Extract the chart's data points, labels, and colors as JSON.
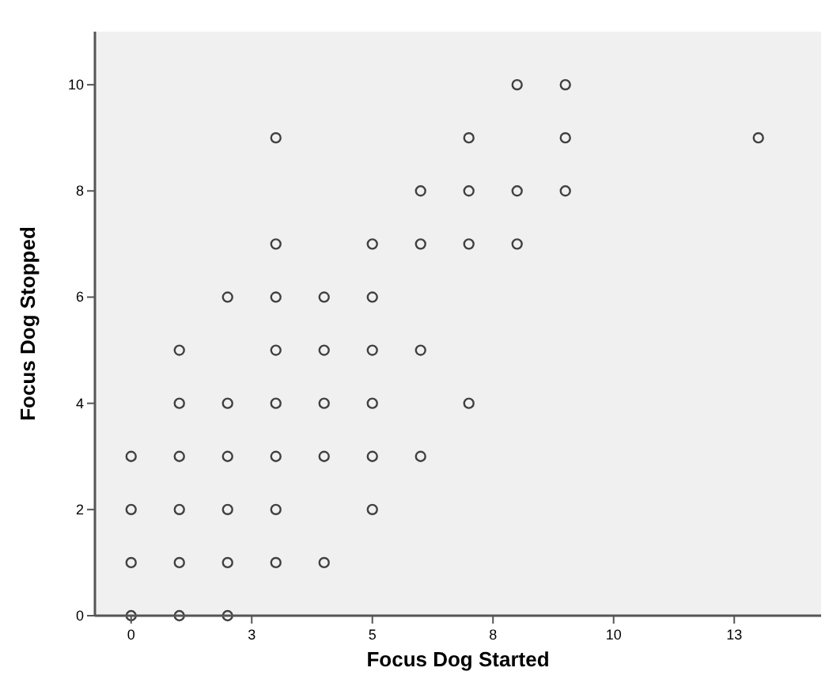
{
  "chart_data": {
    "type": "scatter",
    "xlabel": "Focus Dog Started",
    "ylabel": "Focus Dog Stopped",
    "x": [
      8,
      9,
      3,
      7,
      9,
      13,
      6,
      7,
      8,
      9,
      3,
      5,
      6,
      7,
      8,
      2,
      3,
      4,
      5,
      1,
      3,
      4,
      5,
      6,
      1,
      2,
      3,
      4,
      5,
      7,
      0,
      1,
      2,
      3,
      4,
      5,
      6,
      0,
      1,
      2,
      3,
      5,
      0,
      1,
      2,
      3,
      4,
      0,
      1,
      2
    ],
    "series": [
      {
        "color": "#404040",
        "values": [
          10,
          10,
          9,
          9,
          9,
          9,
          8,
          8,
          8,
          8,
          7,
          7,
          7,
          7,
          7,
          6,
          6,
          6,
          6,
          5,
          5,
          5,
          5,
          5,
          4,
          4,
          4,
          4,
          4,
          4,
          3,
          3,
          3,
          3,
          3,
          3,
          3,
          2,
          2,
          2,
          2,
          2,
          1,
          1,
          1,
          1,
          1,
          0,
          0,
          0
        ]
      }
    ],
    "xlim": [
      -0.75,
      14.3
    ],
    "ylim": [
      0,
      11
    ],
    "xticks": [
      0,
      {
        "value": 2.5,
        "label": "3"
      },
      5,
      {
        "value": 7.5,
        "label": "8"
      },
      10,
      {
        "value": 12.5,
        "label": "13"
      }
    ],
    "yticks": [
      0,
      2,
      4,
      6,
      8,
      10
    ],
    "marker": "circle",
    "grid": false
  }
}
